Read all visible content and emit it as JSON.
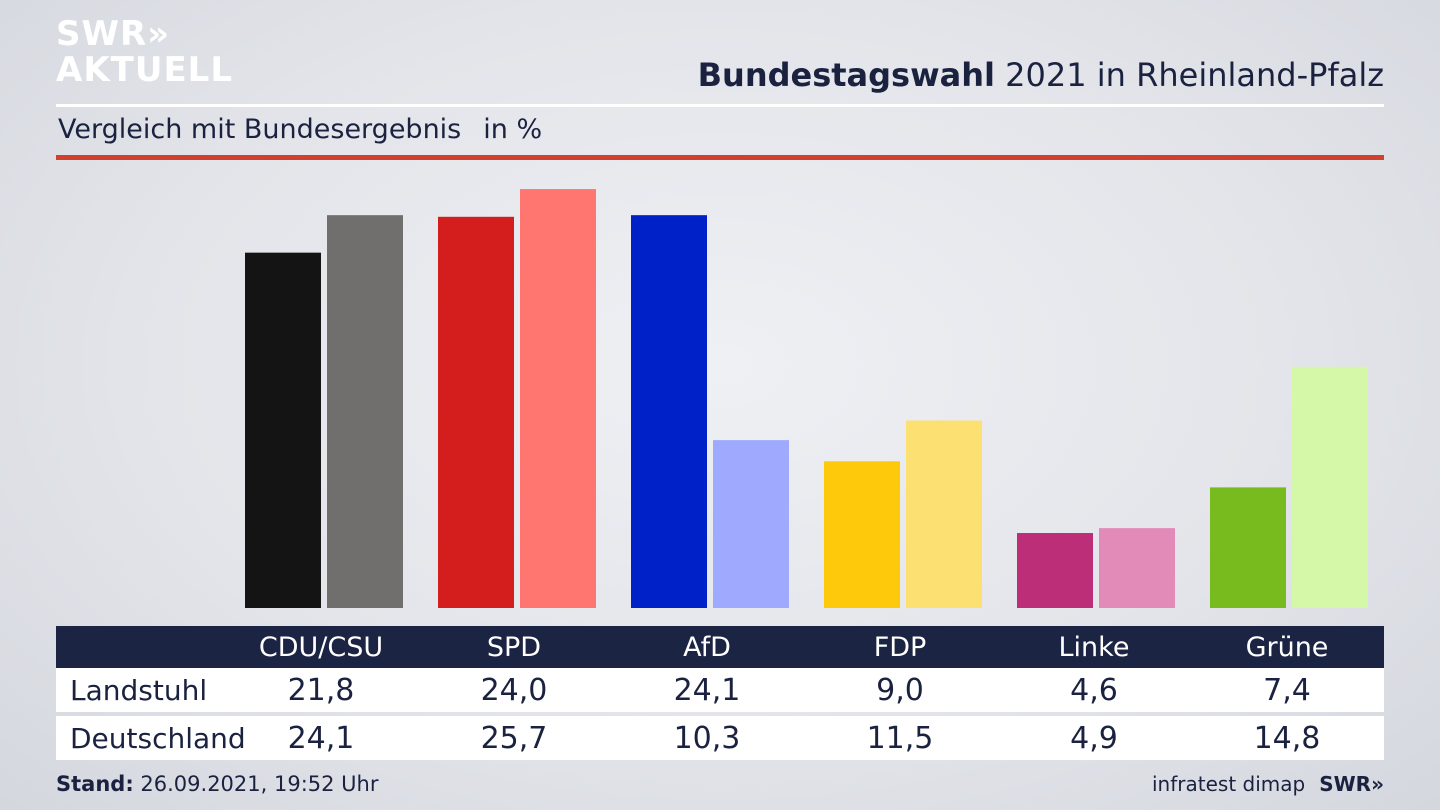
{
  "logo": {
    "line1": "SWR»",
    "line2": "AKTUELL"
  },
  "header": {
    "title_bold": "Bundestagswahl",
    "title_rest": " 2021 in Rheinland-Pfalz",
    "subtitle": "Vergleich mit Bundesergebnis",
    "unit": "in %"
  },
  "colors": {
    "accent_rule": "#d1402f",
    "table_header_bg": "#1b2443"
  },
  "chart_data": {
    "type": "bar",
    "title": "Bundestagswahl 2021 in Rheinland-Pfalz",
    "subtitle": "Vergleich mit Bundesergebnis in %",
    "categories": [
      "CDU/CSU",
      "SPD",
      "AfD",
      "FDP",
      "Linke",
      "Grüne"
    ],
    "series": [
      {
        "name": "Landstuhl",
        "values": [
          21.8,
          24.0,
          24.1,
          9.0,
          4.6,
          7.4
        ],
        "colors": [
          "#141414",
          "#d41e1e",
          "#0021c8",
          "#fdc90a",
          "#bc2e77",
          "#78bb1f"
        ]
      },
      {
        "name": "Deutschland",
        "values": [
          24.1,
          25.7,
          10.3,
          11.5,
          4.9,
          14.8
        ],
        "colors": [
          "#706f6d",
          "#ff7570",
          "#9faafe",
          "#fde072",
          "#e28ab8",
          "#d4f7a8"
        ]
      }
    ],
    "xlabel": "",
    "ylabel": "",
    "ylim": [
      0,
      26
    ],
    "grid": false
  },
  "table": {
    "headers": [
      "CDU/CSU",
      "SPD",
      "AfD",
      "FDP",
      "Linke",
      "Grüne"
    ],
    "rows": [
      {
        "label": "Landstuhl",
        "values": [
          "21,8",
          "24,0",
          "24,1",
          "9,0",
          "4,6",
          "7,4"
        ]
      },
      {
        "label": "Deutschland",
        "values": [
          "24,1",
          "25,7",
          "10,3",
          "11,5",
          "4,9",
          "14,8"
        ]
      }
    ]
  },
  "footer": {
    "stand_label": "Stand:",
    "stand_value": " 26.09.2021, 19:52 Uhr",
    "source": "infratest dimap",
    "brand": "SWR»"
  }
}
